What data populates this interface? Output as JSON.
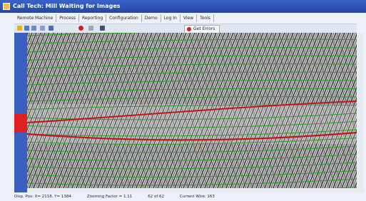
{
  "window": {
    "title": "Call Tech: Mill Waiting for Images"
  },
  "menu": [
    "Remote Machine",
    "Process",
    "Reporting",
    "Configuration",
    "Demo",
    "Log In",
    "View",
    "Tools"
  ],
  "toolbar": {
    "button": "Get Errors"
  },
  "status": [
    "Disp. Pos: X= 2118, Y= 1384",
    "Zooming Factor = 1.11",
    "62 of 62",
    "Current Wire: 163"
  ]
}
